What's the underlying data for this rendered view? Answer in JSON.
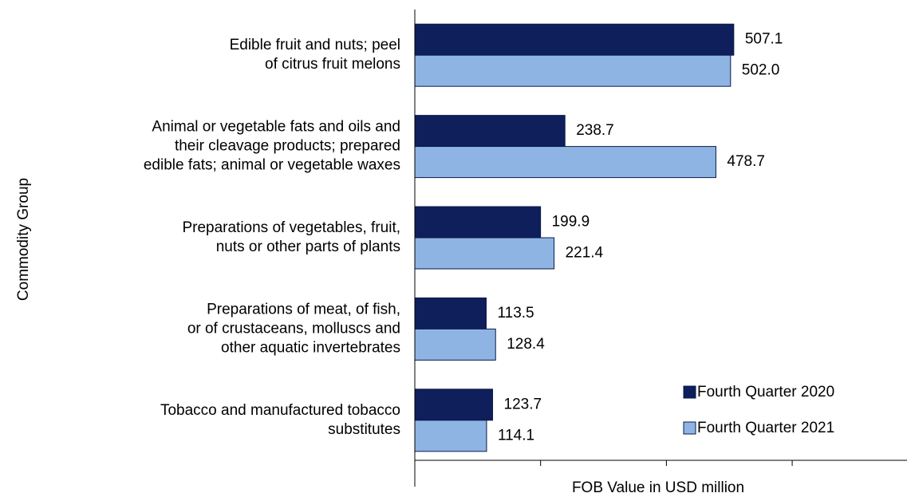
{
  "chart_data": {
    "type": "barh",
    "xlabel": "FOB Value in USD million",
    "ylabel": "Commodity Group",
    "categories": [
      "Edible fruit and nuts; peel\nof citrus fruit melons",
      "Animal or vegetable fats and oils and\ntheir cleavage products; prepared\nedible fats; animal or vegetable waxes",
      "Preparations of vegetables, fruit,\nnuts or other parts of plants",
      "Preparations of meat, of fish,\nor of crustaceans, molluscs and\nother aquatic invertebrates",
      "Tobacco and manufactured tobacco\nsubstitutes"
    ],
    "series": [
      {
        "name": "Fourth Quarter 2020",
        "color": "#0e1f5b",
        "values": [
          507.1,
          238.7,
          199.9,
          113.5,
          123.7
        ],
        "value_labels": [
          "507.1",
          "238.7",
          "199.9",
          "113.5",
          "123.7"
        ]
      },
      {
        "name": "Fourth Quarter 2021",
        "color": "#8eb4e3",
        "values": [
          502.0,
          478.7,
          221.4,
          128.4,
          114.1
        ],
        "value_labels": [
          "502.0",
          "478.7",
          "221.4",
          "128.4",
          "114.1"
        ]
      }
    ],
    "xlim": [
      0,
      780
    ],
    "xticks": [
      0,
      200,
      400,
      600
    ],
    "legend": "lower right"
  }
}
